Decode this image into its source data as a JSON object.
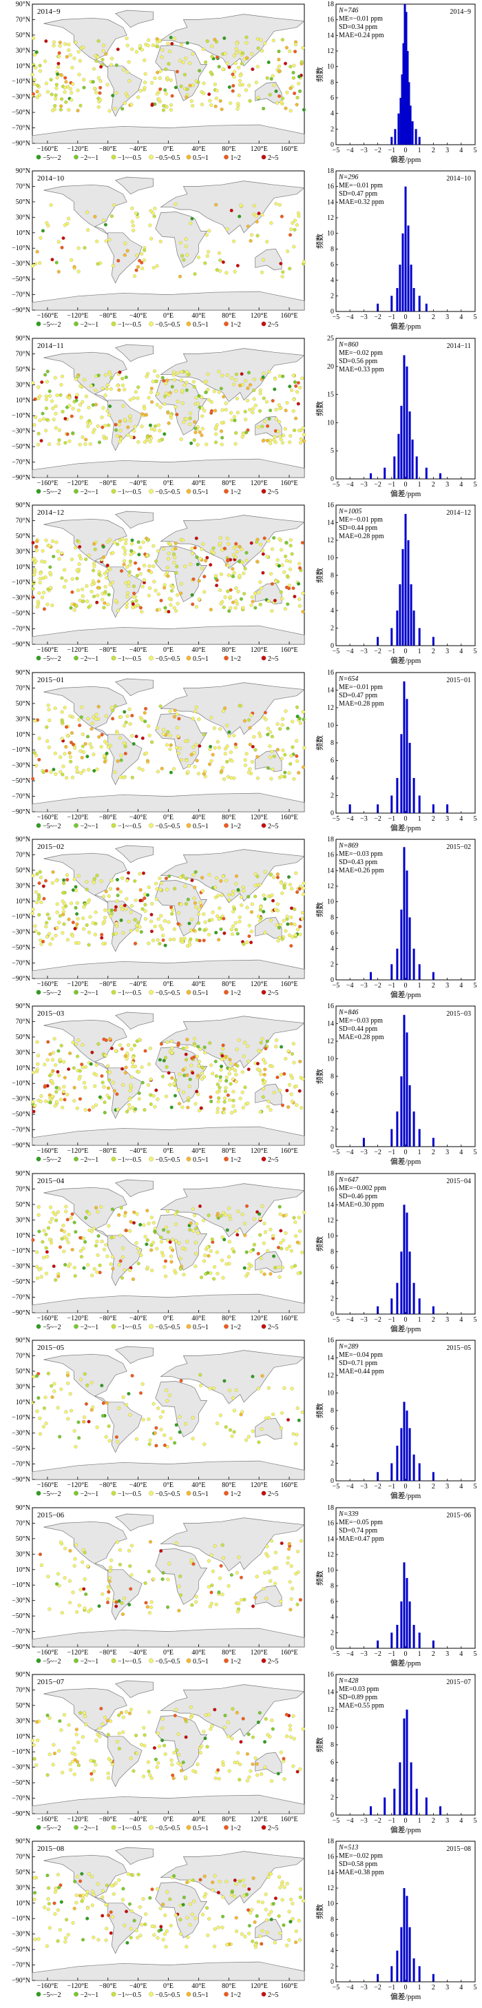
{
  "figure": {
    "map": {
      "lat_ticks": [
        "90°N",
        "70°N",
        "50°N",
        "30°N",
        "10°N",
        "−10°N",
        "−30°N",
        "−50°N",
        "−70°N",
        "−90°N"
      ],
      "lon_ticks": [
        "−160°E",
        "−120°E",
        "−80°E",
        "−40°E",
        "0°E",
        "40°E",
        "80°E",
        "120°E",
        "160°E"
      ],
      "legend": [
        {
          "range": "−5~−2",
          "color": "#2f9e1e"
        },
        {
          "range": "−2~−1",
          "color": "#79c82d"
        },
        {
          "range": "−1~−0.5",
          "color": "#c6e23a"
        },
        {
          "range": "−0.5~0.5",
          "color": "#f4f46a"
        },
        {
          "range": "0.5~1",
          "color": "#f5b82e"
        },
        {
          "range": "1~2",
          "color": "#ee5a1e"
        },
        {
          "range": "2~5",
          "color": "#c80d0d"
        }
      ]
    },
    "histogram": {
      "xlabel": "偏差/ppm",
      "ylabel": "频数",
      "x_ticks": [
        "−5",
        "−4",
        "−3",
        "−2",
        "−1",
        "0",
        "1",
        "2",
        "3",
        "4",
        "5"
      ],
      "bar_color": "#0000cc"
    }
  },
  "panels": [
    {
      "month": "2014−9",
      "n": "N=746",
      "me": "ME=−0.01 ppm",
      "sd": "SD=0.34 ppm",
      "mae": "MAE=0.24 ppm",
      "hist_month": "2014−9",
      "yticks": [
        "0",
        "2",
        "4",
        "6",
        "8",
        "10",
        "12",
        "14",
        "16",
        "18"
      ],
      "ymax": 18
    },
    {
      "month": "2014−10",
      "n": "N=296",
      "me": "ME=−0.01 ppm",
      "sd": "SD=0.47 ppm",
      "mae": "MAE=0.32 ppm",
      "hist_month": "2014−10",
      "yticks": [
        "0",
        "2",
        "4",
        "6",
        "8",
        "10",
        "12",
        "14",
        "16",
        "18"
      ],
      "ymax": 18
    },
    {
      "month": "2014−11",
      "n": "N=860",
      "me": "ME=−0.02 ppm",
      "sd": "SD=0.56 ppm",
      "mae": "MAE=0.33 ppm",
      "hist_month": "2014−11",
      "yticks": [
        "0",
        "5",
        "10",
        "15",
        "20",
        "25"
      ],
      "ymax": 25
    },
    {
      "month": "2014−12",
      "n": "N=1005",
      "me": "ME=−0.01 ppm",
      "sd": "SD=0.44 ppm",
      "mae": "MAE=0.28 ppm",
      "hist_month": "2014−12",
      "yticks": [
        "0",
        "2",
        "4",
        "6",
        "8",
        "10",
        "12",
        "14",
        "16"
      ],
      "ymax": 16
    },
    {
      "month": "2015−01",
      "n": "N=654",
      "me": "ME=−0.01 ppm",
      "sd": "SD=0.47 ppm",
      "mae": "MAE=0.28 ppm",
      "hist_month": "2015−01",
      "yticks": [
        "0",
        "2",
        "4",
        "6",
        "8",
        "10",
        "12",
        "14",
        "16"
      ],
      "ymax": 16
    },
    {
      "month": "2015−02",
      "n": "N=869",
      "me": "ME=−0.03 ppm",
      "sd": "SD=0.43 ppm",
      "mae": "MAE=0.26 ppm",
      "hist_month": "2015−02",
      "yticks": [
        "0",
        "2",
        "4",
        "6",
        "8",
        "10",
        "12",
        "14",
        "16",
        "18"
      ],
      "ymax": 18
    },
    {
      "month": "2015−03",
      "n": "N=846",
      "me": "ME=−0.03 ppm",
      "sd": "SD=0.44 ppm",
      "mae": "MAE=0.28 ppm",
      "hist_month": "2015−03",
      "yticks": [
        "0",
        "2",
        "4",
        "6",
        "8",
        "10",
        "12",
        "14",
        "16"
      ],
      "ymax": 16
    },
    {
      "month": "2015−04",
      "n": "N=647",
      "me": "ME=−0.002 ppm",
      "sd": "SD=0.46 ppm",
      "mae": "MAE=0.30 ppm",
      "hist_month": "2015−04",
      "yticks": [
        "0",
        "2",
        "4",
        "6",
        "8",
        "10",
        "12",
        "14",
        "16",
        "18"
      ],
      "ymax": 18
    },
    {
      "month": "2015−05",
      "n": "N=289",
      "me": "ME=−0.04 ppm",
      "sd": "SD=0.71 ppm",
      "mae": "MAE=0.44 ppm",
      "hist_month": "2015−05",
      "yticks": [
        "0",
        "2",
        "4",
        "6",
        "8",
        "10",
        "12",
        "14",
        "16"
      ],
      "ymax": 16
    },
    {
      "month": "2015−06",
      "n": "N=339",
      "me": "ME=−0.05 ppm",
      "sd": "SD=0.74 ppm",
      "mae": "MAE=0.47 ppm",
      "hist_month": "2015−06",
      "yticks": [
        "0",
        "2",
        "4",
        "6",
        "8",
        "10",
        "12",
        "14",
        "16",
        "18"
      ],
      "ymax": 18
    },
    {
      "month": "2015−07",
      "n": "N=428",
      "me": "ME=0.03 ppm",
      "sd": "SD=0.89 ppm",
      "mae": "MAE=0.55 ppm",
      "hist_month": "2015−07",
      "yticks": [
        "0",
        "2",
        "4",
        "6",
        "8",
        "10",
        "12",
        "14",
        "16"
      ],
      "ymax": 16
    },
    {
      "month": "2015−08",
      "n": "N=513",
      "me": "ME=−0.02 ppm",
      "sd": "SD=0.58 ppm",
      "mae": "MAE=0.38 ppm",
      "hist_month": "2015−08",
      "yticks": [
        "0",
        "2",
        "4",
        "6",
        "8",
        "10",
        "12",
        "14",
        "16",
        "18"
      ],
      "ymax": 18
    }
  ],
  "chart_data": [
    {
      "type": "scatter",
      "title": "2014−9",
      "xlabel": "",
      "ylabel": "",
      "xlim": [
        -180,
        180
      ],
      "ylim": [
        -90,
        90
      ],
      "description_series": "bias classes −5~−2 … 2~5 ppm",
      "series": [
        {
          "name": "−0.5~0.5",
          "values": []
        }
      ]
    },
    {
      "type": "bar",
      "title": "2014−9",
      "xlabel": "偏差/ppm",
      "ylabel": "频数",
      "xlim": [
        -5,
        5
      ],
      "ylim": [
        0,
        18
      ],
      "annotations": [
        "N=746",
        "ME=−0.01 ppm",
        "SD=0.34 ppm",
        "MAE=0.24 ppm"
      ],
      "x": [
        -1.0,
        -0.75,
        -0.5,
        -0.35,
        -0.25,
        -0.15,
        -0.05,
        0.05,
        0.15,
        0.25,
        0.35,
        0.5,
        0.75,
        1.0
      ],
      "values": [
        1,
        2,
        4,
        6,
        9,
        13,
        18,
        17,
        12,
        8,
        5,
        3,
        2,
        1
      ]
    },
    {
      "type": "bar",
      "title": "2014−10",
      "xlabel": "偏差/ppm",
      "ylabel": "频数",
      "xlim": [
        -5,
        5
      ],
      "ylim": [
        0,
        18
      ],
      "annotations": [
        "N=296",
        "ME=−0.01 ppm",
        "SD=0.47 ppm",
        "MAE=0.32 ppm"
      ],
      "x": [
        -2.0,
        -1.0,
        -0.6,
        -0.4,
        -0.2,
        0.0,
        0.2,
        0.4,
        0.6,
        1.0,
        1.5
      ],
      "values": [
        1,
        2,
        3,
        6,
        10,
        16,
        11,
        6,
        3,
        2,
        1
      ]
    },
    {
      "type": "bar",
      "title": "2014−11",
      "xlabel": "偏差/ppm",
      "ylabel": "频数",
      "xlim": [
        -5,
        5
      ],
      "ylim": [
        0,
        25
      ],
      "annotations": [
        "N=860",
        "ME=−0.02 ppm",
        "SD=0.56 ppm",
        "MAE=0.33 ppm"
      ],
      "x": [
        -2.5,
        -1.5,
        -0.8,
        -0.5,
        -0.3,
        -0.1,
        0.1,
        0.3,
        0.5,
        0.8,
        1.5,
        2.5
      ],
      "values": [
        1,
        2,
        4,
        8,
        13,
        22,
        20,
        12,
        7,
        4,
        2,
        1
      ]
    },
    {
      "type": "bar",
      "title": "2014−12",
      "xlabel": "偏差/ppm",
      "ylabel": "频数",
      "xlim": [
        -5,
        5
      ],
      "ylim": [
        0,
        16
      ],
      "annotations": [
        "N=1005",
        "ME=−0.01 ppm",
        "SD=0.44 ppm",
        "MAE=0.28 ppm"
      ],
      "x": [
        -2.0,
        -1.0,
        -0.6,
        -0.4,
        -0.2,
        0.0,
        0.2,
        0.4,
        0.6,
        1.0,
        2.0
      ],
      "values": [
        1,
        2,
        4,
        7,
        11,
        15,
        12,
        7,
        4,
        2,
        1
      ]
    },
    {
      "type": "bar",
      "title": "2015−01",
      "xlabel": "偏差/ppm",
      "ylabel": "频数",
      "xlim": [
        -5,
        5
      ],
      "ylim": [
        0,
        16
      ],
      "annotations": [
        "N=654",
        "ME=−0.01 ppm",
        "SD=0.47 ppm",
        "MAE=0.28 ppm"
      ],
      "x": [
        -4.0,
        -2.0,
        -1.0,
        -0.6,
        -0.3,
        -0.1,
        0.1,
        0.3,
        0.6,
        1.0,
        2.0,
        3.0
      ],
      "values": [
        1,
        1,
        2,
        4,
        9,
        15,
        13,
        8,
        4,
        2,
        1,
        1
      ]
    },
    {
      "type": "bar",
      "title": "2015−02",
      "xlabel": "偏差/ppm",
      "ylabel": "频数",
      "xlim": [
        -5,
        5
      ],
      "ylim": [
        0,
        18
      ],
      "annotations": [
        "N=869",
        "ME=−0.03 ppm",
        "SD=0.43 ppm",
        "MAE=0.26 ppm"
      ],
      "x": [
        -2.5,
        -1.0,
        -0.6,
        -0.3,
        -0.1,
        0.1,
        0.3,
        0.6,
        1.0,
        2.0
      ],
      "values": [
        1,
        2,
        4,
        9,
        17,
        14,
        8,
        4,
        2,
        1
      ]
    },
    {
      "type": "bar",
      "title": "2015−03",
      "xlabel": "偏差/ppm",
      "ylabel": "频数",
      "xlim": [
        -5,
        5
      ],
      "ylim": [
        0,
        16
      ],
      "annotations": [
        "N=846",
        "ME=−0.03 ppm",
        "SD=0.44 ppm",
        "MAE=0.28 ppm"
      ],
      "x": [
        -3.0,
        -1.0,
        -0.6,
        -0.3,
        -0.1,
        0.1,
        0.3,
        0.6,
        1.0,
        2.0
      ],
      "values": [
        1,
        2,
        4,
        8,
        15,
        13,
        7,
        4,
        2,
        1
      ]
    },
    {
      "type": "bar",
      "title": "2015−04",
      "xlabel": "偏差/ppm",
      "ylabel": "频数",
      "xlim": [
        -5,
        5
      ],
      "ylim": [
        0,
        18
      ],
      "annotations": [
        "N=647",
        "ME=−0.002 ppm",
        "SD=0.46 ppm",
        "MAE=0.30 ppm"
      ],
      "x": [
        -2.0,
        -1.0,
        -0.6,
        -0.3,
        -0.1,
        0.1,
        0.3,
        0.6,
        1.0,
        2.0
      ],
      "values": [
        1,
        2,
        4,
        8,
        14,
        13,
        8,
        4,
        2,
        1
      ]
    },
    {
      "type": "bar",
      "title": "2015−05",
      "xlabel": "偏差/ppm",
      "ylabel": "频数",
      "xlim": [
        -5,
        5
      ],
      "ylim": [
        0,
        16
      ],
      "annotations": [
        "N=289",
        "ME=−0.04 ppm",
        "SD=0.71 ppm",
        "MAE=0.44 ppm"
      ],
      "x": [
        -2.0,
        -1.0,
        -0.6,
        -0.3,
        -0.1,
        0.1,
        0.3,
        0.6,
        1.0,
        2.0
      ],
      "values": [
        1,
        2,
        4,
        6,
        9,
        8,
        6,
        3,
        2,
        1
      ]
    },
    {
      "type": "bar",
      "title": "2015−06",
      "xlabel": "偏差/ppm",
      "ylabel": "频数",
      "xlim": [
        -5,
        5
      ],
      "ylim": [
        0,
        18
      ],
      "annotations": [
        "N=339",
        "ME=−0.05 ppm",
        "SD=0.74 ppm",
        "MAE=0.47 ppm"
      ],
      "x": [
        -2.0,
        -1.0,
        -0.6,
        -0.3,
        -0.1,
        0.1,
        0.3,
        0.6,
        1.0,
        2.0
      ],
      "values": [
        1,
        2,
        3,
        6,
        11,
        9,
        6,
        3,
        2,
        1
      ]
    },
    {
      "type": "bar",
      "title": "2015−07",
      "xlabel": "偏差/ppm",
      "ylabel": "频数",
      "xlim": [
        -5,
        5
      ],
      "ylim": [
        0,
        16
      ],
      "annotations": [
        "N=428",
        "ME=0.03 ppm",
        "SD=0.89 ppm",
        "MAE=0.55 ppm"
      ],
      "x": [
        -2.5,
        -1.5,
        -0.8,
        -0.4,
        -0.1,
        0.1,
        0.4,
        0.8,
        1.5,
        2.5
      ],
      "values": [
        1,
        2,
        3,
        6,
        11,
        12,
        6,
        3,
        2,
        1
      ]
    },
    {
      "type": "bar",
      "title": "2015−08",
      "xlabel": "偏差/ppm",
      "ylabel": "频数",
      "xlim": [
        -5,
        5
      ],
      "ylim": [
        0,
        18
      ],
      "annotations": [
        "N=513",
        "ME=−0.02 ppm",
        "SD=0.58 ppm",
        "MAE=0.38 ppm"
      ],
      "x": [
        -2.0,
        -1.0,
        -0.6,
        -0.3,
        -0.1,
        0.1,
        0.3,
        0.6,
        1.0,
        2.0
      ],
      "values": [
        1,
        2,
        4,
        7,
        12,
        11,
        7,
        3,
        2,
        1
      ]
    }
  ]
}
